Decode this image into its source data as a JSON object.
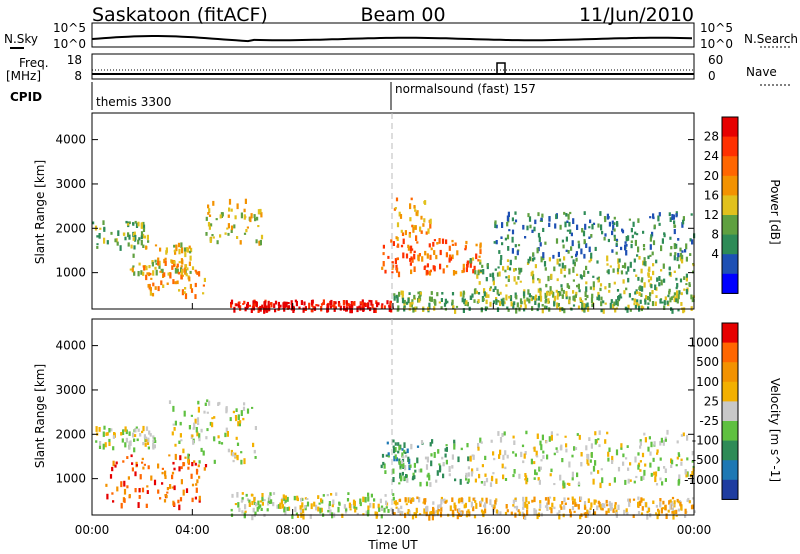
{
  "header": {
    "station": "Saskatoon (fitACF)",
    "beam": "Beam 00",
    "date": "11/Jun/2010"
  },
  "top_panels": {
    "nsky_label": "N.Sky",
    "nsky_ticks": [
      "10^5",
      "10^0"
    ],
    "nsearch_label": "N.Search",
    "nsearch_ticks": [
      "10^5",
      "10^0"
    ],
    "freq_label_1": "Freq.",
    "freq_label_2": "[MHz]",
    "freq_ticks": [
      "18",
      "8"
    ],
    "nave_label": "Nave",
    "nave_ticks": [
      "60",
      "0"
    ],
    "cpid_label": "CPID",
    "cpid_1": "themis 3300",
    "cpid_2": "normalsound (fast) 157"
  },
  "chart_data": [
    {
      "type": "heatmap",
      "panel": "power",
      "ylabel": "Slant Range [km]",
      "ylim": [
        180,
        4600
      ],
      "yticks": [
        "4000",
        "3000",
        "2000",
        "1000"
      ],
      "xlabel": "Time UT",
      "xticks": [
        "00:00",
        "04:00",
        "08:00",
        "12:00",
        "16:00",
        "20:00",
        "00:00"
      ],
      "xlim_hours": [
        0,
        24
      ],
      "colorbar": {
        "label": "Power [dB]",
        "ticks": [
          "28",
          "24",
          "20",
          "16",
          "12",
          "8",
          "4"
        ],
        "colors": [
          "#0000ff",
          "#1e50b4",
          "#2e8b57",
          "#5fa040",
          "#e1c11d",
          "#f39200",
          "#ff6600",
          "#ff3000",
          "#e60000"
        ]
      },
      "bands": [
        {
          "t0": 0.0,
          "t1": 2.2,
          "r0": 1600,
          "r1": 2200,
          "level": 3
        },
        {
          "t0": 1.5,
          "t1": 4.0,
          "r0": 1000,
          "r1": 1700,
          "level": 4
        },
        {
          "t0": 2.0,
          "t1": 4.5,
          "r0": 500,
          "r1": 1300,
          "level": 5
        },
        {
          "t0": 4.5,
          "t1": 6.8,
          "r0": 1700,
          "r1": 2700,
          "level": 4
        },
        {
          "t0": 5.5,
          "t1": 12.0,
          "r0": 180,
          "r1": 400,
          "level": 8
        },
        {
          "t0": 11.5,
          "t1": 15.5,
          "r0": 1000,
          "r1": 1800,
          "level": 6
        },
        {
          "t0": 12.0,
          "t1": 13.5,
          "r0": 1800,
          "r1": 2700,
          "level": 5
        },
        {
          "t0": 15.0,
          "t1": 24.0,
          "r0": 600,
          "r1": 1400,
          "level": 3
        },
        {
          "t0": 16.0,
          "t1": 24.0,
          "r0": 1400,
          "r1": 2400,
          "level": 2
        },
        {
          "t0": 12.0,
          "t1": 24.0,
          "r0": 180,
          "r1": 600,
          "level": 3
        }
      ]
    },
    {
      "type": "heatmap",
      "panel": "velocity",
      "ylabel": "Slant Range [km]",
      "ylim": [
        180,
        4600
      ],
      "yticks": [
        "4000",
        "3000",
        "2000",
        "1000"
      ],
      "xlabel": "Time UT",
      "xticks": [
        "00:00",
        "04:00",
        "08:00",
        "12:00",
        "16:00",
        "20:00",
        "00:00"
      ],
      "xlim_hours": [
        0,
        24
      ],
      "colorbar": {
        "label": "Velocity [m s^-1]",
        "ticks": [
          "1000",
          "500",
          "100",
          "25",
          "-25",
          "-100",
          "-500",
          "-1000"
        ],
        "colors": [
          "#1e3ca0",
          "#1e78b4",
          "#2e8b57",
          "#5fc040",
          "#c8c8c8",
          "#f3b000",
          "#f39200",
          "#ff6600",
          "#e60000"
        ]
      },
      "bands": [
        {
          "t0": 0.0,
          "t1": 2.5,
          "r0": 1700,
          "r1": 2200,
          "level": 4
        },
        {
          "t0": 0.5,
          "t1": 4.5,
          "r0": 400,
          "r1": 1600,
          "level": 7
        },
        {
          "t0": 3.0,
          "t1": 6.5,
          "r0": 1400,
          "r1": 2800,
          "level": 4
        },
        {
          "t0": 5.5,
          "t1": 12.0,
          "r0": 180,
          "r1": 700,
          "level": 4
        },
        {
          "t0": 11.5,
          "t1": 13.0,
          "r0": 1000,
          "r1": 1900,
          "level": 2
        },
        {
          "t0": 12.0,
          "t1": 15.0,
          "r0": 900,
          "r1": 1900,
          "level": 3
        },
        {
          "t0": 15.0,
          "t1": 24.0,
          "r0": 900,
          "r1": 2100,
          "level": 4
        },
        {
          "t0": 12.0,
          "t1": 24.0,
          "r0": 180,
          "r1": 600,
          "level": 5
        }
      ]
    }
  ]
}
